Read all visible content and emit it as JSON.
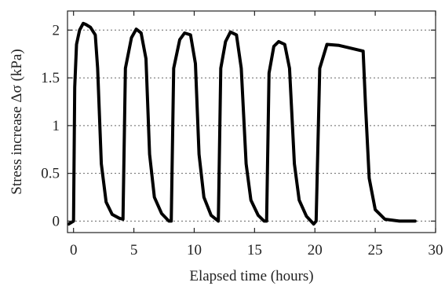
{
  "chart_data": {
    "type": "line",
    "xlabel": "Elapsed time (hours)",
    "ylabel": "Stress increase  Δσ (kPa)",
    "xlim": [
      -0.5,
      30
    ],
    "ylim": [
      -0.12,
      2.2
    ],
    "xticks": [
      0,
      5,
      10,
      15,
      20,
      25,
      30
    ],
    "xtick_labels": [
      "0",
      "5",
      "10",
      "15",
      "20",
      "25",
      "30"
    ],
    "yticks": [
      0,
      0.5,
      1,
      1.5,
      2
    ],
    "ytick_labels": [
      "0",
      "0.5",
      "1",
      "1.5",
      "2"
    ],
    "grid": "horizontal dotted at y ticks",
    "line_color": "#000000",
    "series": [
      {
        "x": [
          -0.4,
          0.0,
          0.1,
          0.25,
          0.5,
          0.8,
          1.0,
          1.4,
          1.8,
          2.0,
          2.3,
          2.7,
          3.2,
          3.8,
          4.1,
          4.3,
          4.8,
          5.2,
          5.6,
          6.0,
          6.3,
          6.7,
          7.3,
          7.9,
          8.1,
          8.3,
          8.8,
          9.2,
          9.7,
          10.1,
          10.4,
          10.8,
          11.4,
          11.9,
          12.0,
          12.2,
          12.6,
          13.0,
          13.5,
          13.9,
          14.3,
          14.7,
          15.3,
          15.8,
          16.0,
          16.2,
          16.6,
          17.0,
          17.5,
          17.9,
          18.3,
          18.7,
          19.3,
          19.9,
          20.1,
          20.4,
          21.0,
          22.0,
          23.0,
          24.0,
          24.2,
          24.5,
          25.0,
          25.8,
          27.0,
          28.3
        ],
        "y": [
          -0.03,
          0.0,
          1.4,
          1.85,
          2.0,
          2.07,
          2.06,
          2.03,
          1.95,
          1.6,
          0.6,
          0.2,
          0.07,
          0.03,
          0.02,
          1.6,
          1.92,
          2.01,
          1.97,
          1.7,
          0.7,
          0.25,
          0.08,
          0.0,
          0.0,
          1.6,
          1.9,
          1.97,
          1.95,
          1.65,
          0.7,
          0.25,
          0.06,
          0.01,
          0.0,
          1.6,
          1.88,
          1.98,
          1.95,
          1.6,
          0.6,
          0.22,
          0.06,
          0.0,
          0.0,
          1.55,
          1.83,
          1.88,
          1.85,
          1.6,
          0.6,
          0.22,
          0.05,
          -0.03,
          0.0,
          1.6,
          1.85,
          1.84,
          1.81,
          1.78,
          1.2,
          0.45,
          0.12,
          0.02,
          0.0,
          0.0
        ]
      }
    ]
  }
}
